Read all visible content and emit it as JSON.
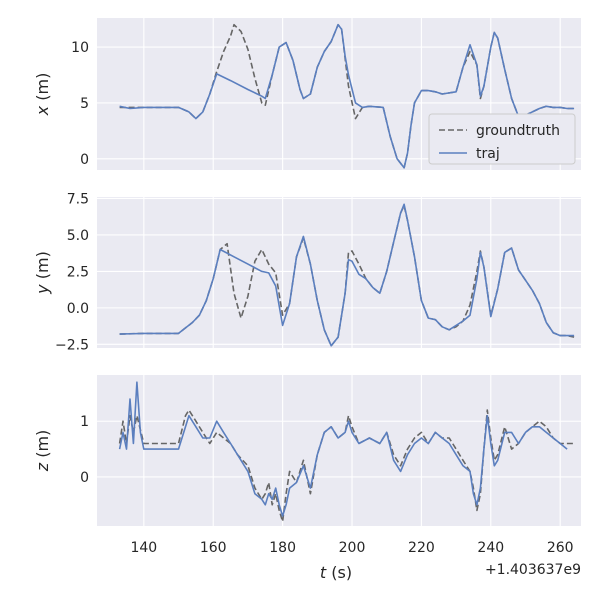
{
  "chart_data": [
    {
      "type": "line",
      "ylabel_var": "x",
      "ylabel_unit": " (m)",
      "ylim": [
        -1.0,
        12.6
      ],
      "yticks": [
        0,
        5,
        10
      ],
      "ytick_labels": [
        "0",
        "5",
        "10"
      ],
      "xlim": [
        126.5,
        266
      ],
      "xticks": [
        140,
        160,
        180,
        200,
        220,
        240,
        260
      ],
      "show_xticklabels": false,
      "legend": {
        "location": "lower-right",
        "entries": [
          "groundtruth",
          "traj"
        ]
      },
      "series": [
        {
          "name": "groundtruth",
          "color": "#666666",
          "dash": "6,3",
          "x": [
            133,
            136,
            140,
            150,
            153,
            155,
            157,
            159,
            161,
            163,
            165,
            166,
            168,
            170,
            172,
            174,
            175,
            177,
            179,
            181,
            183,
            185,
            186,
            188,
            190,
            192,
            194,
            196,
            197,
            198,
            199,
            201,
            203,
            205,
            209,
            211,
            213,
            215,
            216,
            217,
            218,
            220,
            222,
            224,
            226,
            230,
            232,
            234,
            236,
            237,
            238,
            240,
            241,
            242,
            244,
            246,
            248,
            250,
            254,
            256,
            258,
            260,
            262,
            264
          ],
          "y": [
            4.6,
            4.6,
            4.6,
            4.6,
            4.2,
            3.6,
            4.2,
            5.8,
            7.8,
            9.6,
            11.0,
            12.0,
            11.4,
            9.8,
            7.2,
            5.0,
            4.8,
            7.5,
            10.0,
            10.4,
            8.8,
            6.2,
            5.4,
            5.8,
            8.2,
            9.6,
            10.5,
            12.0,
            11.6,
            9.0,
            6.5,
            3.6,
            4.6,
            4.7,
            4.6,
            2.0,
            0.0,
            -0.8,
            0.5,
            3.0,
            5.0,
            6.1,
            6.1,
            6.0,
            5.8,
            6.0,
            8.2,
            9.6,
            8.4,
            5.4,
            6.5,
            10.0,
            11.3,
            10.8,
            8.0,
            5.4,
            3.8,
            3.9,
            4.5,
            4.7,
            4.6,
            4.6,
            4.5,
            4.5
          ]
        },
        {
          "name": "traj",
          "color": "#5b7fbf",
          "dash": "",
          "x": [
            133,
            136,
            140,
            150,
            153,
            155,
            157,
            159,
            161,
            165,
            170,
            174,
            175,
            177,
            179,
            181,
            183,
            185,
            186,
            188,
            190,
            192,
            194,
            196,
            197,
            198,
            199,
            201,
            203,
            205,
            209,
            211,
            213,
            215,
            216,
            217,
            218,
            220,
            222,
            224,
            226,
            230,
            232,
            234,
            236,
            237,
            238,
            240,
            241,
            242,
            244,
            246,
            248,
            250,
            254,
            256,
            258,
            260,
            262,
            264
          ],
          "y": [
            4.7,
            4.5,
            4.6,
            4.6,
            4.2,
            3.6,
            4.2,
            5.8,
            7.6,
            7.0,
            6.2,
            5.6,
            5.4,
            7.5,
            10.0,
            10.4,
            8.8,
            6.2,
            5.4,
            5.8,
            8.2,
            9.6,
            10.5,
            12.0,
            11.6,
            9.2,
            7.5,
            5.0,
            4.6,
            4.7,
            4.6,
            2.0,
            0.0,
            -0.8,
            0.5,
            3.0,
            5.0,
            6.1,
            6.1,
            6.0,
            5.8,
            6.0,
            8.2,
            10.2,
            8.4,
            5.6,
            6.5,
            10.0,
            11.3,
            10.8,
            8.0,
            5.4,
            3.8,
            3.9,
            4.5,
            4.7,
            4.6,
            4.6,
            4.5,
            4.5
          ]
        }
      ]
    },
    {
      "type": "line",
      "ylabel_var": "y",
      "ylabel_unit": " (m)",
      "ylim": [
        -2.75,
        7.6
      ],
      "yticks": [
        -2.5,
        0.0,
        2.5,
        5.0,
        7.5
      ],
      "ytick_labels": [
        "−2.5",
        "0.0",
        "2.5",
        "5.0",
        "7.5"
      ],
      "xlim": [
        126.5,
        266
      ],
      "xticks": [
        140,
        160,
        180,
        200,
        220,
        240,
        260
      ],
      "show_xticklabels": false,
      "series": [
        {
          "name": "groundtruth",
          "color": "#666666",
          "dash": "6,3",
          "x": [
            133,
            140,
            150,
            154,
            156,
            158,
            160,
            162,
            164,
            166,
            168,
            170,
            172,
            174,
            176,
            178,
            180,
            182,
            184,
            186,
            188,
            190,
            192,
            194,
            196,
            198,
            199,
            200,
            202,
            204,
            206,
            208,
            210,
            212,
            214,
            215,
            216,
            218,
            220,
            222,
            224,
            226,
            228,
            230,
            232,
            234,
            236,
            237,
            238,
            240,
            242,
            244,
            246,
            248,
            250,
            252,
            254,
            256,
            258,
            260,
            262,
            264
          ],
          "y": [
            -1.8,
            -1.75,
            -1.75,
            -1.0,
            -0.5,
            0.5,
            2.0,
            4.0,
            4.4,
            1.0,
            -0.7,
            0.8,
            3.2,
            4.0,
            3.0,
            2.4,
            -0.5,
            0.3,
            3.5,
            4.8,
            3.0,
            0.5,
            -1.5,
            -2.6,
            -2.0,
            1.0,
            3.8,
            3.9,
            3.0,
            2.0,
            1.4,
            1.0,
            2.5,
            4.5,
            6.5,
            7.0,
            6.0,
            3.5,
            0.5,
            -0.7,
            -0.8,
            -1.3,
            -1.5,
            -1.3,
            -0.9,
            0.2,
            2.5,
            3.9,
            2.8,
            -0.5,
            1.3,
            3.8,
            4.1,
            2.6,
            1.9,
            1.2,
            0.3,
            -1.0,
            -1.7,
            -1.9,
            -1.9,
            -2.0
          ]
        },
        {
          "name": "traj",
          "color": "#5b7fbf",
          "dash": "",
          "x": [
            133,
            140,
            150,
            154,
            156,
            158,
            160,
            162,
            166,
            170,
            174,
            176,
            178,
            180,
            182,
            184,
            186,
            188,
            190,
            192,
            194,
            196,
            198,
            199,
            200,
            202,
            204,
            206,
            208,
            210,
            212,
            214,
            215,
            216,
            218,
            220,
            222,
            224,
            226,
            228,
            230,
            232,
            234,
            236,
            237,
            238,
            240,
            242,
            244,
            246,
            248,
            250,
            252,
            254,
            256,
            258,
            260,
            262,
            264
          ],
          "y": [
            -1.8,
            -1.75,
            -1.75,
            -1.0,
            -0.5,
            0.5,
            2.0,
            4.0,
            3.5,
            3.0,
            2.5,
            2.4,
            1.5,
            -1.2,
            0.3,
            3.5,
            4.9,
            3.0,
            0.5,
            -1.5,
            -2.6,
            -2.0,
            1.0,
            3.3,
            3.2,
            2.3,
            2.0,
            1.4,
            1.0,
            2.5,
            4.5,
            6.5,
            7.1,
            6.0,
            3.5,
            0.5,
            -0.7,
            -0.8,
            -1.3,
            -1.5,
            -1.2,
            -0.9,
            -0.5,
            2.0,
            3.8,
            2.8,
            -0.6,
            1.3,
            3.8,
            4.1,
            2.6,
            1.9,
            1.2,
            0.3,
            -1.0,
            -1.7,
            -1.9,
            -1.9,
            -1.9
          ]
        }
      ]
    },
    {
      "type": "line",
      "ylabel_var": "z",
      "ylabel_unit": " (m)",
      "ylim": [
        -0.88,
        1.83
      ],
      "yticks": [
        0,
        1
      ],
      "ytick_labels": [
        "0",
        "1"
      ],
      "xlim": [
        126.5,
        266
      ],
      "xticks": [
        140,
        160,
        180,
        200,
        220,
        240,
        260
      ],
      "show_xticklabels": true,
      "xtick_labels": [
        "140",
        "160",
        "180",
        "200",
        "220",
        "240",
        "260"
      ],
      "xlabel_var": "t",
      "xlabel_unit": " (s)",
      "x_offset_text": "+1.403637e9",
      "series": [
        {
          "name": "groundtruth",
          "color": "#666666",
          "dash": "6,3",
          "x": [
            133,
            134,
            135,
            136,
            137,
            138,
            140,
            145,
            150,
            152,
            153,
            155,
            157,
            159,
            161,
            163,
            165,
            167,
            170,
            172,
            174,
            175,
            176,
            177,
            178,
            179,
            180,
            181,
            182,
            184,
            186,
            188,
            190,
            192,
            194,
            196,
            198,
            199,
            200,
            202,
            205,
            208,
            210,
            212,
            214,
            216,
            218,
            220,
            222,
            224,
            226,
            228,
            230,
            232,
            234,
            235,
            236,
            237,
            238,
            239,
            240,
            241,
            242,
            244,
            246,
            248,
            250,
            252,
            254,
            256,
            258,
            260,
            262,
            264
          ],
          "y": [
            0.6,
            1.0,
            0.6,
            1.1,
            0.8,
            1.1,
            0.6,
            0.6,
            0.6,
            1.1,
            1.2,
            1.0,
            0.8,
            0.6,
            0.8,
            0.7,
            0.6,
            0.4,
            0.2,
            -0.2,
            -0.4,
            -0.3,
            -0.1,
            -0.5,
            -0.3,
            -0.6,
            -0.8,
            -0.3,
            0.1,
            -0.1,
            0.3,
            -0.3,
            0.4,
            0.8,
            0.9,
            0.7,
            0.8,
            1.1,
            0.9,
            0.6,
            0.7,
            0.6,
            0.8,
            0.4,
            0.2,
            0.5,
            0.7,
            0.8,
            0.6,
            0.8,
            0.7,
            0.7,
            0.5,
            0.3,
            0.1,
            -0.2,
            -0.6,
            -0.3,
            0.5,
            1.2,
            0.7,
            0.3,
            0.4,
            0.9,
            0.5,
            0.6,
            0.8,
            0.9,
            1.0,
            0.9,
            0.7,
            0.6,
            0.6,
            0.6
          ]
        },
        {
          "name": "traj",
          "color": "#5b7fbf",
          "dash": "",
          "x": [
            133,
            134,
            135,
            136,
            137,
            138,
            139,
            140,
            150,
            152,
            153,
            155,
            157,
            159,
            161,
            163,
            165,
            167,
            170,
            172,
            174,
            175,
            176,
            177,
            178,
            179,
            180,
            181,
            182,
            184,
            186,
            188,
            190,
            192,
            194,
            196,
            198,
            199,
            200,
            202,
            205,
            208,
            210,
            212,
            214,
            216,
            218,
            220,
            222,
            224,
            226,
            228,
            230,
            232,
            234,
            235,
            236,
            237,
            238,
            239,
            240,
            241,
            242,
            244,
            246,
            248,
            250,
            252,
            254,
            256,
            258,
            260,
            262
          ],
          "y": [
            0.5,
            0.8,
            0.5,
            1.4,
            0.6,
            1.7,
            0.8,
            0.5,
            0.5,
            0.9,
            1.1,
            0.9,
            0.7,
            0.7,
            1.0,
            0.8,
            0.6,
            0.4,
            0.1,
            -0.3,
            -0.4,
            -0.5,
            -0.3,
            -0.4,
            -0.2,
            -0.5,
            -0.7,
            -0.5,
            -0.2,
            -0.1,
            0.2,
            -0.2,
            0.4,
            0.8,
            0.9,
            0.7,
            0.8,
            1.0,
            0.8,
            0.6,
            0.7,
            0.6,
            0.8,
            0.3,
            0.1,
            0.4,
            0.6,
            0.7,
            0.6,
            0.8,
            0.7,
            0.6,
            0.4,
            0.2,
            0.1,
            -0.3,
            -0.5,
            -0.2,
            0.5,
            1.1,
            0.6,
            0.2,
            0.3,
            0.8,
            0.8,
            0.6,
            0.8,
            0.9,
            0.9,
            0.8,
            0.7,
            0.6,
            0.5
          ]
        }
      ]
    }
  ]
}
